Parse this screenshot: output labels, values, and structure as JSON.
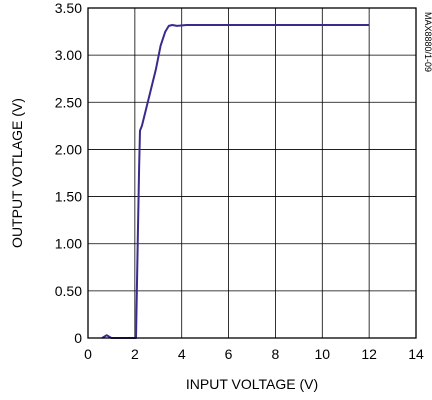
{
  "chart_data": {
    "type": "line",
    "xlabel": "INPUT VOLTAGE (V)",
    "ylabel": "OUTPUT VOTLAGE (V)",
    "side_label": "MAX8880/1-09",
    "xlim": [
      0,
      14
    ],
    "ylim": [
      0,
      3.5
    ],
    "xticks": [
      0,
      2,
      4,
      6,
      8,
      10,
      12,
      14
    ],
    "xtick_labels": [
      "0",
      "2",
      "4",
      "6",
      "8",
      "10",
      "12",
      "14"
    ],
    "yticks": [
      0,
      0.5,
      1.0,
      1.5,
      2.0,
      2.5,
      3.0,
      3.5
    ],
    "ytick_labels": [
      "0",
      "0.50",
      "1.00",
      "1.50",
      "2.00",
      "2.50",
      "3.00",
      "3.50"
    ],
    "grid": true,
    "series": [
      {
        "color": "#3b2a8c",
        "x": [
          0.6,
          0.8,
          1.0,
          2.05,
          2.12,
          2.18,
          2.22,
          2.3,
          2.6,
          2.9,
          3.1,
          3.3,
          3.45,
          3.6,
          3.8,
          4.2,
          6,
          8,
          10,
          12
        ],
        "y": [
          0.0,
          0.03,
          0.0,
          0.0,
          1.0,
          1.8,
          2.2,
          2.25,
          2.55,
          2.85,
          3.1,
          3.25,
          3.31,
          3.32,
          3.31,
          3.32,
          3.32,
          3.32,
          3.32,
          3.32
        ]
      }
    ]
  }
}
